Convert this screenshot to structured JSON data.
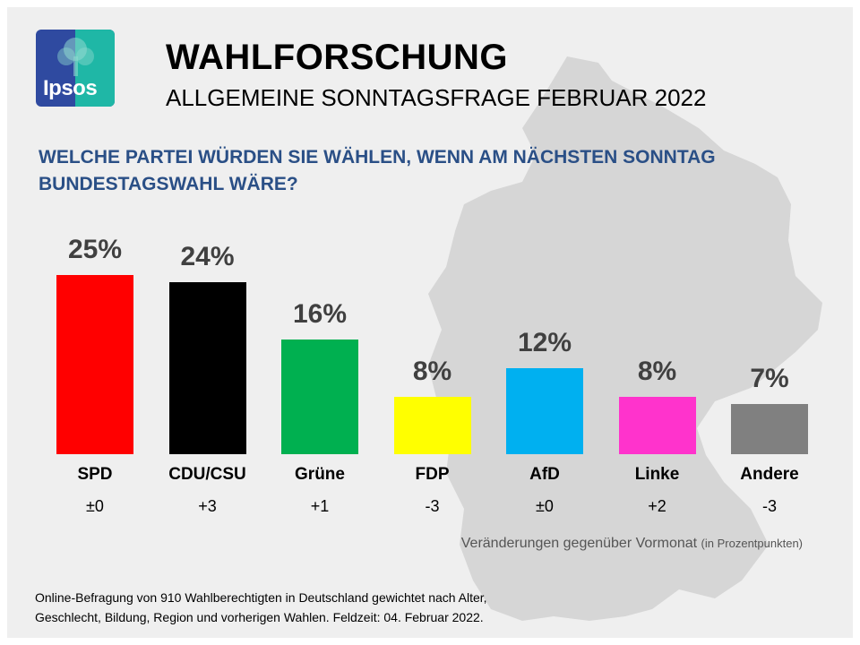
{
  "logo": {
    "text": "Ipsos"
  },
  "header": {
    "title": "WAHLFORSCHUNG",
    "subtitle": "ALLGEMEINE SONNTAGSFRAGE FEBRUAR 2022"
  },
  "question": "WELCHE PARTEI WÜRDEN SIE WÄHLEN, WENN AM NÄCHSTEN SONNTAG BUNDESTAGSWAHL WÄRE?",
  "chart_data": {
    "type": "bar",
    "title": "WELCHE PARTEI WÜRDEN SIE WÄHLEN, WENN AM NÄCHSTEN SONNTAG BUNDESTAGSWAHL WÄRE?",
    "categories": [
      "SPD",
      "CDU/CSU",
      "Grüne",
      "FDP",
      "AfD",
      "Linke",
      "Andere"
    ],
    "values": [
      25,
      24,
      16,
      8,
      12,
      8,
      7
    ],
    "value_labels": [
      "25%",
      "24%",
      "16%",
      "8%",
      "12%",
      "8%",
      "7%"
    ],
    "changes": [
      "±0",
      "+3",
      "+1",
      "-3",
      "±0",
      "+2",
      "-3"
    ],
    "colors": [
      "#ff0000",
      "#000000",
      "#00b050",
      "#ffff00",
      "#00b0f0",
      "#ff33cc",
      "#808080"
    ],
    "ylim": [
      0,
      25
    ],
    "xlabel": "",
    "ylabel": ""
  },
  "change_note": {
    "main": "Veränderungen gegenüber Vormonat",
    "detail": "(in Prozentpunkten)"
  },
  "footer": {
    "line1": "Online-Befragung  von 910 Wahlberechtigten  in Deutschland gewichtet nach Alter,",
    "line2": "Geschlecht, Bildung, Region und vorherigen Wahlen.  Feldzeit: 04. Februar 2022."
  }
}
